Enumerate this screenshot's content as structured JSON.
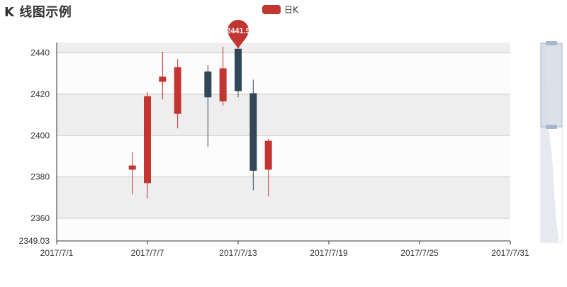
{
  "title": "K 线图示例",
  "legend": {
    "label": "日K",
    "color": "#c23531"
  },
  "colors": {
    "rise": "#c23531",
    "fall": "#314656",
    "band_dark": "#eeeeee",
    "band_light": "#fcfcfc",
    "gridline": "#cccccc",
    "axis": "#333333",
    "slider_fill": "#d3dce6",
    "slider_handle": "#a7b7cc",
    "slider_shadow": "#e6e9ee"
  },
  "chart_data": {
    "type": "candlestick",
    "title": "K 线图示例",
    "x_type": "date",
    "xlim": [
      "2017-07-01",
      "2017-07-31"
    ],
    "x_ticks": [
      "2017-07-01",
      "2017-07-07",
      "2017-07-13",
      "2017-07-19",
      "2017-07-25",
      "2017-07-31"
    ],
    "x_tick_labels": [
      "2017/7/1",
      "2017/7/7",
      "2017/7/13",
      "2017/7/19",
      "2017/7/25",
      "2017/7/31"
    ],
    "ylim": [
      2349.03,
      2445
    ],
    "y_ticks": [
      2360,
      2380,
      2400,
      2420,
      2440
    ],
    "y_tick_labels": [
      "2360",
      "2380",
      "2400",
      "2420",
      "2440"
    ],
    "y_min_label": "2349.03",
    "split_area": true,
    "series": [
      {
        "name": "日K",
        "points": [
          {
            "date": "2017-07-06",
            "open": 2383.5,
            "close": 2385.5,
            "low": 2371.5,
            "high": 2392.0
          },
          {
            "date": "2017-07-07",
            "open": 2377.0,
            "close": 2419.0,
            "low": 2369.5,
            "high": 2421.0
          },
          {
            "date": "2017-07-08",
            "open": 2426.0,
            "close": 2428.5,
            "low": 2417.5,
            "high": 2440.5
          },
          {
            "date": "2017-07-09",
            "open": 2410.5,
            "close": 2433.0,
            "low": 2403.5,
            "high": 2437.0
          },
          {
            "date": "2017-07-11",
            "open": 2431.0,
            "close": 2418.5,
            "low": 2394.5,
            "high": 2434.0
          },
          {
            "date": "2017-07-12",
            "open": 2416.5,
            "close": 2432.5,
            "low": 2414.5,
            "high": 2443.0
          },
          {
            "date": "2017-07-13",
            "open": 2442.0,
            "close": 2421.5,
            "low": 2418.5,
            "high": 2442.0
          },
          {
            "date": "2017-07-14",
            "open": 2420.5,
            "close": 2383.0,
            "low": 2373.5,
            "high": 2427.0
          },
          {
            "date": "2017-07-15",
            "open": 2383.5,
            "close": 2397.5,
            "low": 2370.5,
            "high": 2398.5
          }
        ]
      }
    ],
    "mark_point": {
      "label": "2441.9",
      "date": "2017-07-13",
      "value": 2441.9
    },
    "data_zoom": {
      "orientation": "vertical",
      "start": 0,
      "end": 0.42
    }
  }
}
